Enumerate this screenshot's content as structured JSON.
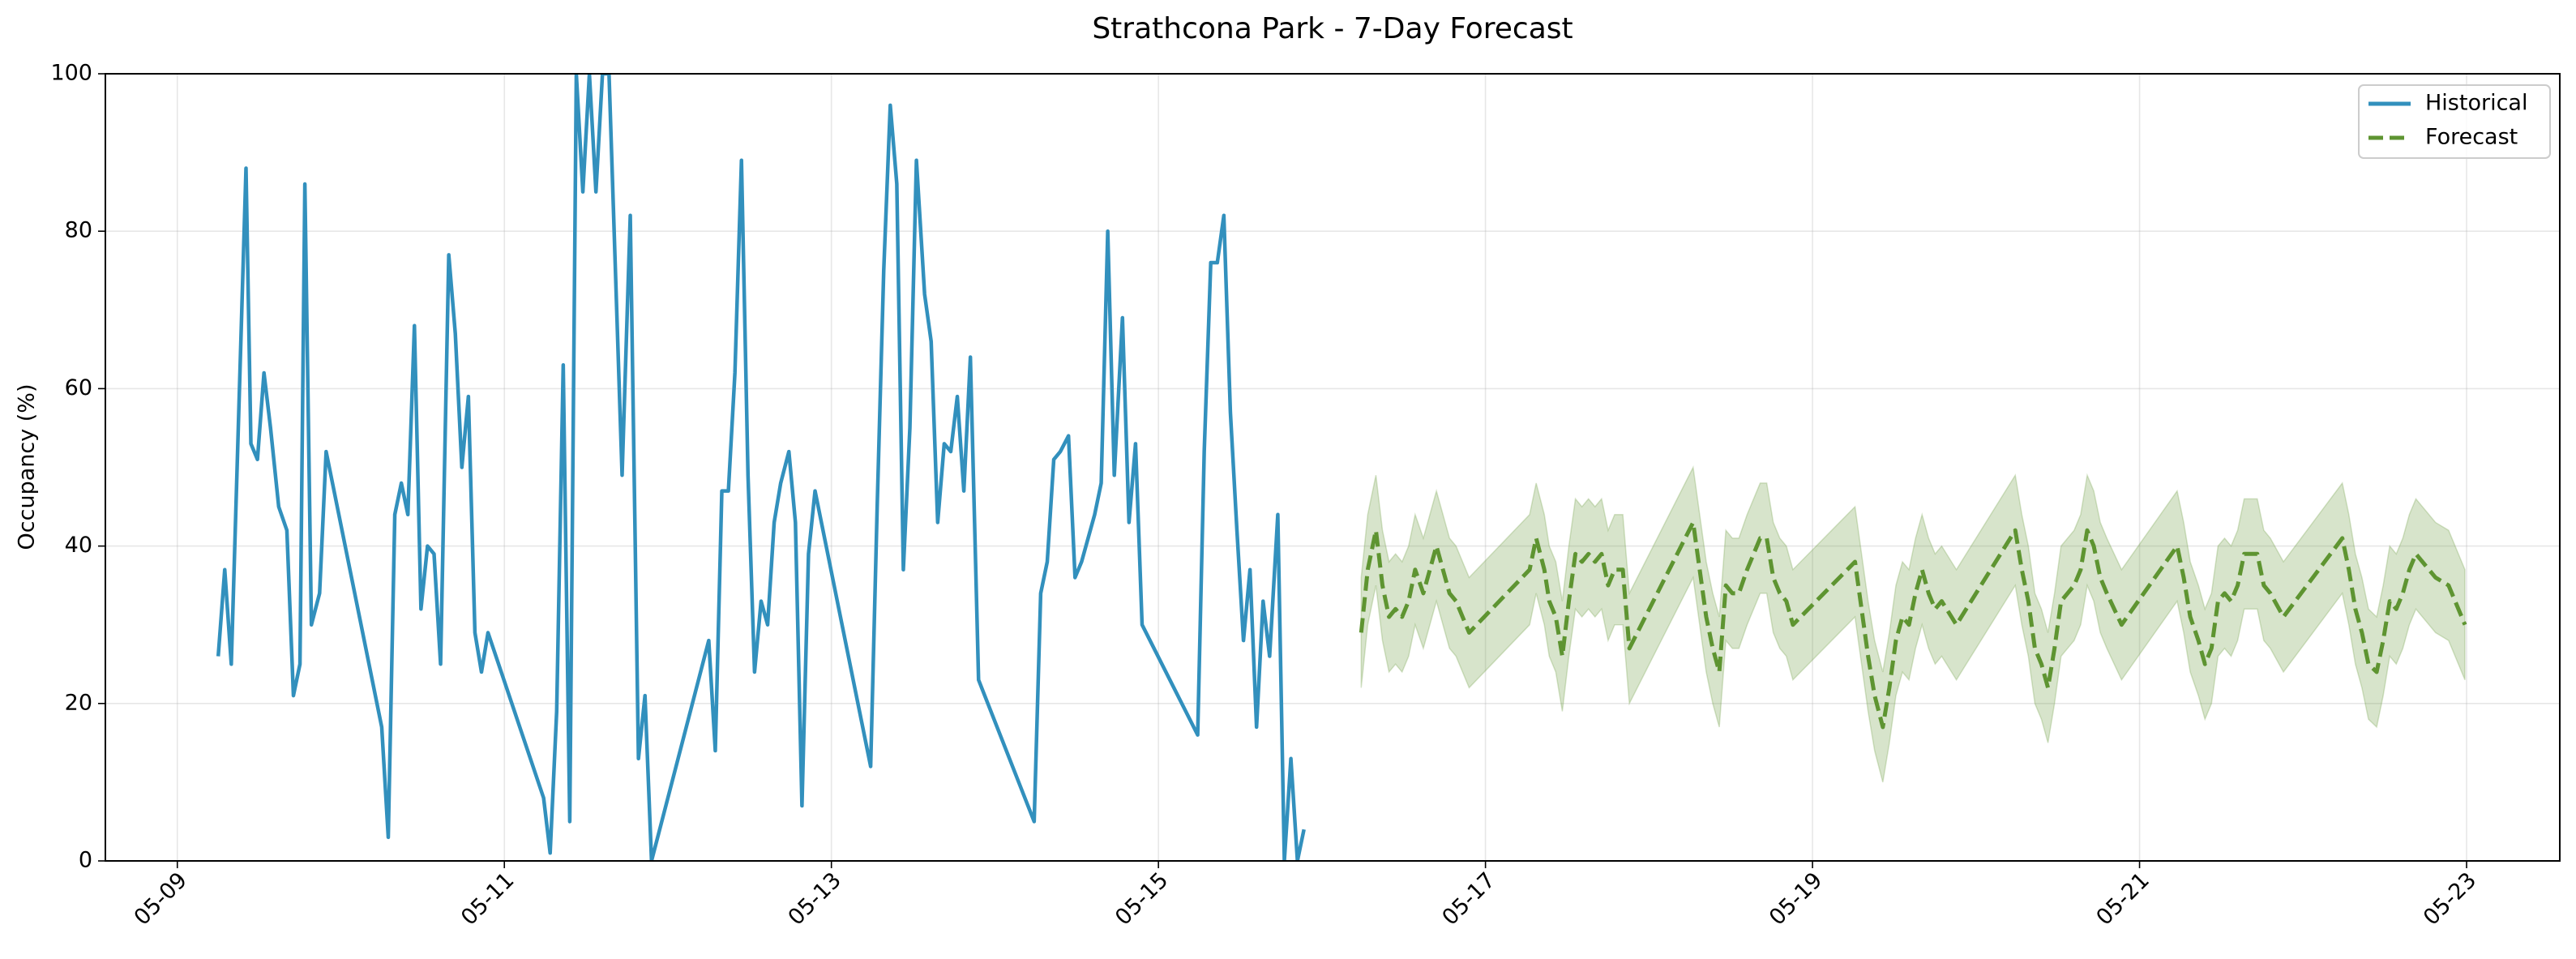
{
  "chart_data": {
    "type": "line",
    "title": "Strathcona Park - 7-Day Forecast",
    "y_label": "Occupancy (%)",
    "xlim": [
      8.56,
      23.57
    ],
    "ylim": [
      0,
      100
    ],
    "xticks": [
      {
        "value": 9,
        "label": "05-09"
      },
      {
        "value": 11,
        "label": "05-11"
      },
      {
        "value": 13,
        "label": "05-13"
      },
      {
        "value": 15,
        "label": "05-15"
      },
      {
        "value": 17,
        "label": "05-17"
      },
      {
        "value": 19,
        "label": "05-19"
      },
      {
        "value": 21,
        "label": "05-21"
      },
      {
        "value": 23,
        "label": "05-23"
      }
    ],
    "yticks": [
      0,
      20,
      40,
      60,
      80,
      100
    ],
    "grid": true,
    "legend": "upper right",
    "series": [
      {
        "name": "Historical",
        "color": "#3290bd",
        "dashed": false,
        "x": [
          9.25,
          9.29,
          9.33,
          9.42,
          9.45,
          9.49,
          9.53,
          9.57,
          9.62,
          9.67,
          9.71,
          9.75,
          9.78,
          9.82,
          9.87,
          9.91,
          10.25,
          10.29,
          10.33,
          10.37,
          10.41,
          10.45,
          10.49,
          10.53,
          10.57,
          10.61,
          10.66,
          10.7,
          10.74,
          10.78,
          10.82,
          10.86,
          10.9,
          11.24,
          11.28,
          11.32,
          11.36,
          11.4,
          11.44,
          11.48,
          11.52,
          11.56,
          11.6,
          11.64,
          11.72,
          11.77,
          11.82,
          11.86,
          11.9,
          12.25,
          12.29,
          12.33,
          12.37,
          12.41,
          12.45,
          12.49,
          12.53,
          12.57,
          12.61,
          12.65,
          12.69,
          12.74,
          12.78,
          12.82,
          12.86,
          12.9,
          13.24,
          13.28,
          13.32,
          13.36,
          13.4,
          13.44,
          13.48,
          13.52,
          13.57,
          13.61,
          13.65,
          13.69,
          13.73,
          13.77,
          13.81,
          13.85,
          13.9,
          14.24,
          14.28,
          14.32,
          14.36,
          14.4,
          14.45,
          14.49,
          14.53,
          14.57,
          14.61,
          14.65,
          14.69,
          14.73,
          14.78,
          14.82,
          14.86,
          14.9,
          15.24,
          15.28,
          15.32,
          15.36,
          15.4,
          15.44,
          15.48,
          15.52,
          15.56,
          15.6,
          15.64,
          15.68,
          15.73,
          15.77,
          15.81,
          15.85,
          15.89
        ],
        "values": [
          26,
          37,
          25,
          88,
          53,
          51,
          62,
          55,
          45,
          42,
          21,
          25,
          86,
          30,
          34,
          52,
          17,
          3,
          44,
          48,
          44,
          68,
          32,
          40,
          39,
          25,
          77,
          67,
          50,
          59,
          29,
          24,
          29,
          8,
          1,
          19,
          63,
          5,
          100,
          85,
          100,
          85,
          100,
          100,
          49,
          82,
          13,
          21,
          0,
          28,
          14,
          47,
          47,
          62,
          89,
          49,
          24,
          33,
          30,
          43,
          48,
          52,
          43,
          7,
          39,
          47,
          12,
          45,
          75,
          96,
          86,
          37,
          55,
          89,
          72,
          66,
          43,
          53,
          52,
          59,
          47,
          64,
          23,
          5,
          34,
          38,
          51,
          52,
          54,
          36,
          38,
          41,
          44,
          48,
          80,
          49,
          69,
          43,
          53,
          30,
          16,
          52,
          76,
          76,
          82,
          57,
          42,
          28,
          37,
          17,
          33,
          26,
          44,
          0,
          13,
          0,
          4
        ]
      },
      {
        "name": "Forecast",
        "color": "#5e9431",
        "dashed": true,
        "x": [
          16.24,
          16.28,
          16.33,
          16.37,
          16.41,
          16.45,
          16.49,
          16.53,
          16.57,
          16.62,
          16.66,
          16.7,
          16.74,
          16.78,
          16.82,
          16.9,
          17.27,
          17.31,
          17.36,
          17.39,
          17.43,
          17.47,
          17.51,
          17.55,
          17.59,
          17.63,
          17.67,
          17.71,
          17.75,
          17.79,
          17.84,
          17.88,
          18.27,
          18.31,
          18.35,
          18.39,
          18.43,
          18.47,
          18.51,
          18.55,
          18.6,
          18.64,
          18.68,
          18.72,
          18.76,
          18.8,
          18.84,
          18.88,
          19.26,
          19.3,
          19.34,
          19.38,
          19.43,
          19.47,
          19.51,
          19.55,
          19.59,
          19.63,
          19.67,
          19.71,
          19.75,
          19.79,
          19.88,
          20.24,
          20.28,
          20.32,
          20.36,
          20.4,
          20.44,
          20.48,
          20.52,
          20.56,
          20.6,
          20.64,
          20.68,
          20.72,
          20.76,
          20.8,
          20.89,
          21.23,
          21.27,
          21.31,
          21.36,
          21.4,
          21.44,
          21.48,
          21.52,
          21.56,
          21.6,
          21.64,
          21.68,
          21.72,
          21.76,
          21.8,
          21.88,
          22.24,
          22.28,
          22.32,
          22.36,
          22.4,
          22.45,
          22.49,
          22.53,
          22.57,
          22.61,
          22.65,
          22.69,
          22.73,
          22.77,
          22.81,
          22.89,
          22.99
        ],
        "values": [
          29,
          37,
          42,
          35,
          31,
          32,
          31,
          33,
          37,
          34,
          37,
          40,
          37,
          34,
          33,
          29,
          37,
          41,
          37,
          33,
          31,
          26,
          33,
          39,
          38,
          39,
          38,
          39,
          35,
          37,
          37,
          27,
          43,
          37,
          31,
          27,
          24,
          35,
          34,
          34,
          37,
          39,
          41,
          41,
          36,
          34,
          33,
          30,
          38,
          32,
          26,
          21,
          17,
          22,
          28,
          31,
          30,
          34,
          37,
          34,
          32,
          33,
          30,
          42,
          37,
          33,
          27,
          25,
          22,
          27,
          33,
          34,
          35,
          37,
          42,
          40,
          36,
          34,
          30,
          40,
          36,
          31,
          28,
          25,
          27,
          33,
          34,
          33,
          35,
          39,
          39,
          39,
          35,
          34,
          31,
          41,
          37,
          32,
          29,
          25,
          24,
          28,
          33,
          32,
          34,
          37,
          39,
          38,
          37,
          36,
          35,
          30
        ],
        "lower": [
          22,
          30,
          35,
          28,
          24,
          25,
          24,
          26,
          30,
          27,
          30,
          33,
          30,
          27,
          26,
          22,
          30,
          34,
          30,
          26,
          24,
          19,
          26,
          32,
          31,
          32,
          31,
          32,
          28,
          30,
          30,
          20,
          36,
          30,
          24,
          20,
          17,
          28,
          27,
          27,
          30,
          32,
          34,
          34,
          29,
          27,
          26,
          23,
          31,
          25,
          19,
          14,
          10,
          15,
          21,
          24,
          23,
          27,
          30,
          27,
          25,
          26,
          23,
          35,
          30,
          26,
          20,
          18,
          15,
          20,
          26,
          27,
          28,
          30,
          35,
          33,
          29,
          27,
          23,
          33,
          29,
          24,
          21,
          18,
          20,
          26,
          27,
          26,
          28,
          32,
          32,
          32,
          28,
          27,
          24,
          34,
          30,
          25,
          22,
          18,
          17,
          21,
          26,
          25,
          27,
          30,
          32,
          31,
          30,
          29,
          28,
          23
        ],
        "upper": [
          36,
          44,
          49,
          42,
          38,
          39,
          38,
          40,
          44,
          41,
          44,
          47,
          44,
          41,
          40,
          36,
          44,
          48,
          44,
          40,
          38,
          33,
          40,
          46,
          45,
          46,
          45,
          46,
          42,
          44,
          44,
          34,
          50,
          44,
          38,
          34,
          31,
          42,
          41,
          41,
          44,
          46,
          48,
          48,
          43,
          41,
          40,
          37,
          45,
          39,
          33,
          28,
          24,
          29,
          35,
          38,
          37,
          41,
          44,
          41,
          39,
          40,
          37,
          49,
          44,
          40,
          34,
          32,
          29,
          34,
          40,
          41,
          42,
          44,
          49,
          47,
          43,
          41,
          37,
          47,
          43,
          38,
          35,
          32,
          34,
          40,
          41,
          40,
          42,
          46,
          46,
          46,
          42,
          41,
          38,
          48,
          44,
          39,
          36,
          32,
          31,
          35,
          40,
          39,
          41,
          44,
          46,
          45,
          44,
          43,
          42,
          37
        ]
      }
    ]
  }
}
